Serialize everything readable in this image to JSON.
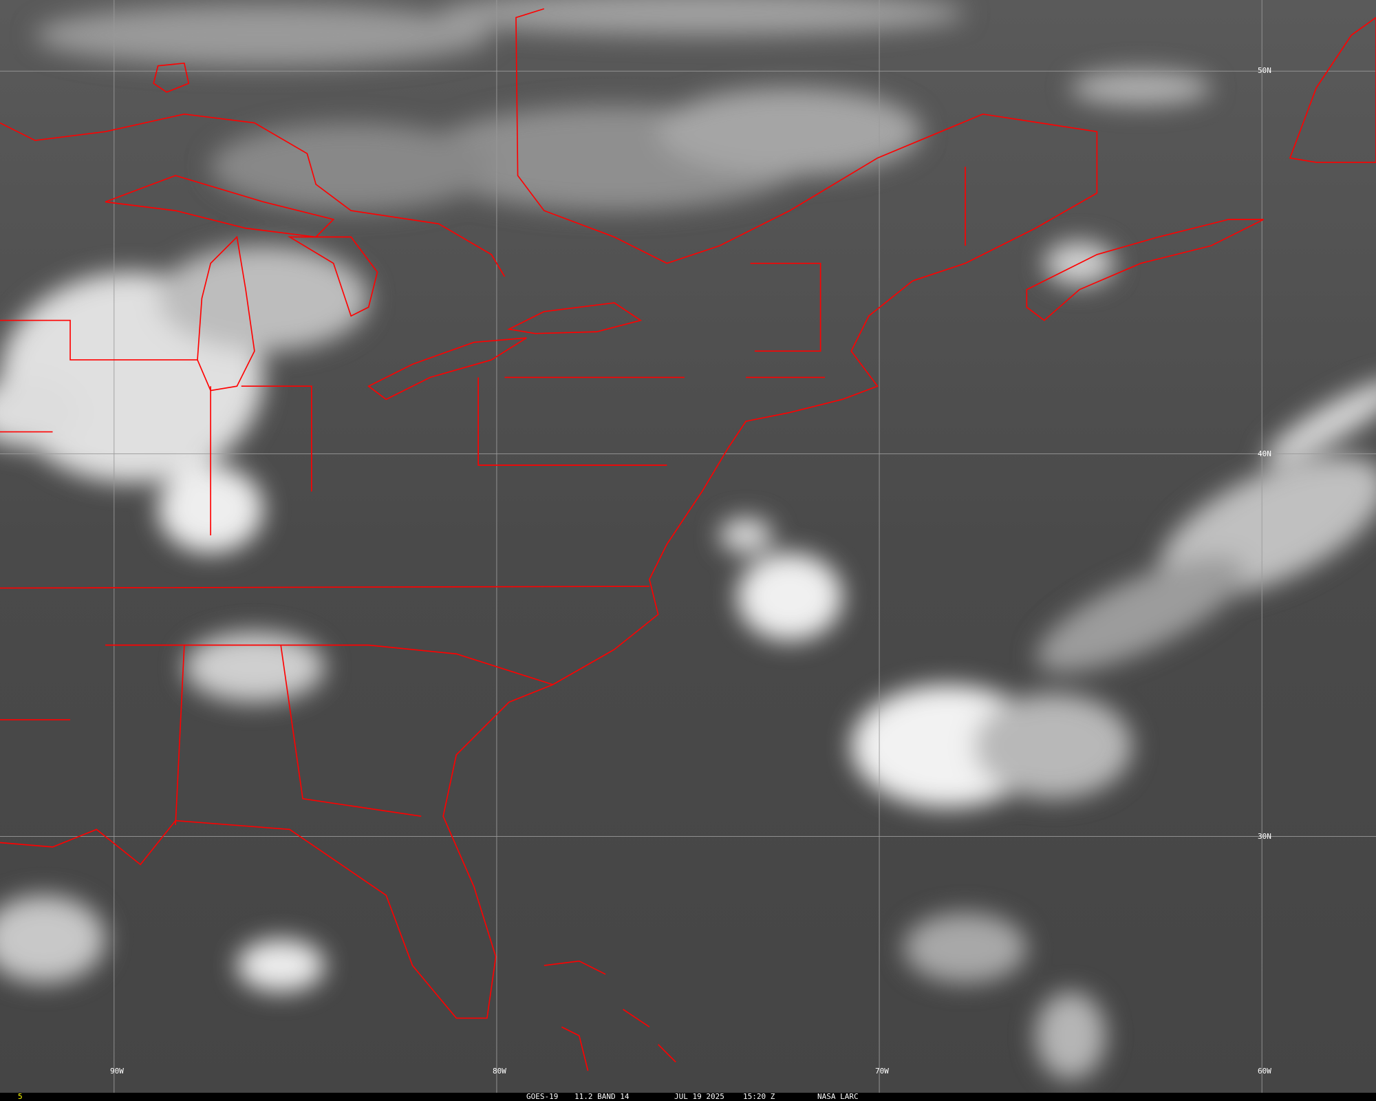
{
  "image": {
    "satellite": "GOES-19",
    "product": "11.2 BAND 14",
    "date": "JUL 19 2025",
    "time": "15:20 Z",
    "source": "NASA LARC",
    "frame_number": "5",
    "frame_number_color": "#ffff00",
    "boundary_color": "#ff0000",
    "grid_color": "#9a9a9a"
  },
  "grid": {
    "longitudes": [
      "90W",
      "80W",
      "70W",
      "60W"
    ],
    "latitudes": [
      "50N",
      "40N",
      "30N"
    ]
  }
}
